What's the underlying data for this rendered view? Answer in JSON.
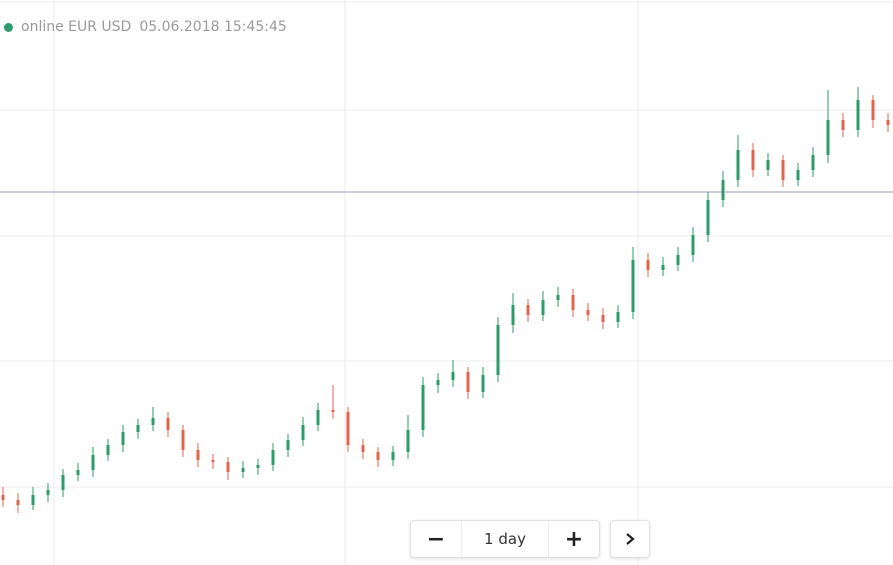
{
  "header": {
    "status": "online EUR USD",
    "timestamp": "05.06.2018 15:45:45"
  },
  "controls": {
    "period": "1 day"
  },
  "chart_data": {
    "type": "candlestick",
    "up_color": "#2e9c6a",
    "down_color": "#e0654f",
    "ylim": [
      60,
      480
    ],
    "grid_y": [
      455,
      329,
      204,
      78
    ],
    "price_line": 373,
    "open": [
      70,
      65,
      60,
      70,
      75,
      90,
      95,
      110,
      120,
      133,
      140,
      147,
      135,
      115,
      105,
      103,
      93,
      97,
      100,
      115,
      125,
      140,
      155,
      153,
      120,
      113,
      105,
      113,
      135,
      180,
      185,
      193,
      173,
      190,
      240,
      260,
      250,
      265,
      270,
      255,
      250,
      243,
      253,
      305,
      295,
      300,
      310,
      330,
      365,
      385,
      415,
      395,
      405,
      385,
      395,
      410,
      445,
      435,
      465,
      445
    ],
    "high": [
      78,
      72,
      78,
      82,
      96,
      102,
      118,
      126,
      140,
      146,
      158,
      153,
      140,
      122,
      111,
      108,
      104,
      106,
      122,
      131,
      148,
      162,
      180,
      158,
      126,
      118,
      119,
      150,
      188,
      192,
      205,
      198,
      198,
      248,
      272,
      266,
      274,
      278,
      276,
      262,
      257,
      260,
      318,
      312,
      308,
      318,
      338,
      373,
      394,
      430,
      422,
      412,
      410,
      402,
      418,
      475,
      452,
      478,
      470,
      452
    ],
    "low": [
      58,
      52,
      55,
      63,
      68,
      84,
      88,
      104,
      113,
      126,
      134,
      128,
      108,
      98,
      96,
      85,
      87,
      90,
      94,
      108,
      119,
      134,
      146,
      113,
      106,
      98,
      99,
      106,
      128,
      172,
      178,
      166,
      167,
      183,
      232,
      243,
      244,
      258,
      248,
      244,
      236,
      237,
      246,
      288,
      289,
      294,
      303,
      323,
      358,
      378,
      388,
      389,
      378,
      379,
      388,
      402,
      428,
      428,
      437,
      433
    ],
    "close": [
      65,
      60,
      70,
      75,
      90,
      95,
      110,
      120,
      133,
      140,
      147,
      135,
      115,
      105,
      103,
      93,
      97,
      100,
      115,
      125,
      140,
      155,
      153,
      120,
      113,
      105,
      113,
      135,
      180,
      185,
      193,
      173,
      190,
      240,
      260,
      250,
      265,
      270,
      255,
      250,
      243,
      253,
      305,
      295,
      300,
      310,
      330,
      365,
      385,
      415,
      395,
      405,
      385,
      395,
      410,
      445,
      435,
      465,
      445,
      440
    ]
  }
}
